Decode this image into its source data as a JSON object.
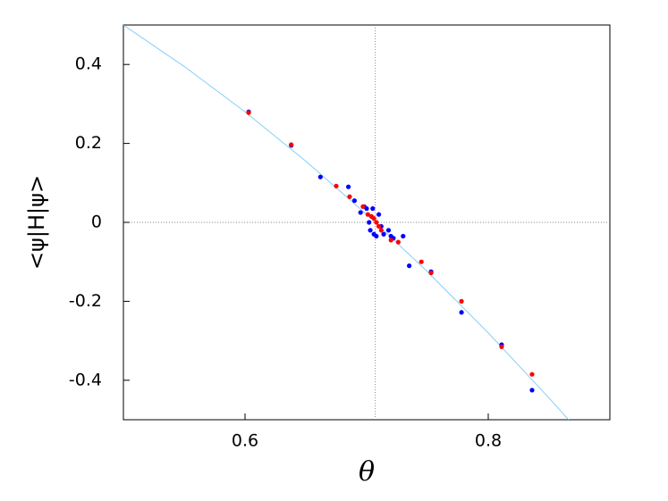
{
  "chart_data": {
    "type": "scatter",
    "xlabel": "θ",
    "ylabel": "<ψ|H|ψ>",
    "xlim": [
      0.5,
      0.9
    ],
    "ylim": [
      -0.5,
      0.5
    ],
    "xticks": [
      0.6,
      0.8
    ],
    "yticks": [
      0.4,
      0.2,
      0,
      -0.2,
      -0.4
    ],
    "hlines": [
      0
    ],
    "vlines": [
      0.7071
    ],
    "series": [
      {
        "mode": "line",
        "color": "#87cefa",
        "x": [
          0.5,
          0.55,
          0.6,
          0.65,
          0.7,
          0.75,
          0.8,
          0.85,
          0.866
        ],
        "y": [
          0.5,
          0.395,
          0.28,
          0.155,
          0.02,
          -0.125,
          -0.28,
          -0.445,
          -0.5
        ]
      },
      {
        "mode": "points",
        "color": "#0000ff",
        "x": [
          0.603,
          0.638,
          0.662,
          0.685,
          0.69,
          0.695,
          0.698,
          0.7,
          0.702,
          0.703,
          0.705,
          0.706,
          0.708,
          0.71,
          0.712,
          0.714,
          0.718,
          0.72,
          0.722,
          0.73,
          0.735,
          0.753,
          0.778,
          0.811,
          0.836
        ],
        "y": [
          0.28,
          0.195,
          0.115,
          0.09,
          0.055,
          0.025,
          0.04,
          0.035,
          0.0,
          -0.02,
          0.035,
          -0.03,
          -0.035,
          0.02,
          -0.01,
          -0.03,
          -0.02,
          -0.035,
          -0.04,
          -0.035,
          -0.11,
          -0.125,
          -0.228,
          -0.31,
          -0.425
        ]
      },
      {
        "mode": "points",
        "color": "#ff0000",
        "x": [
          0.603,
          0.638,
          0.675,
          0.686,
          0.697,
          0.701,
          0.704,
          0.706,
          0.708,
          0.71,
          0.712,
          0.72,
          0.726,
          0.745,
          0.753,
          0.778,
          0.811,
          0.836
        ],
        "y": [
          0.278,
          0.197,
          0.092,
          0.065,
          0.04,
          0.02,
          0.015,
          0.01,
          0.0,
          -0.01,
          -0.02,
          -0.045,
          -0.05,
          -0.1,
          -0.128,
          -0.2,
          -0.315,
          -0.385
        ]
      }
    ]
  }
}
